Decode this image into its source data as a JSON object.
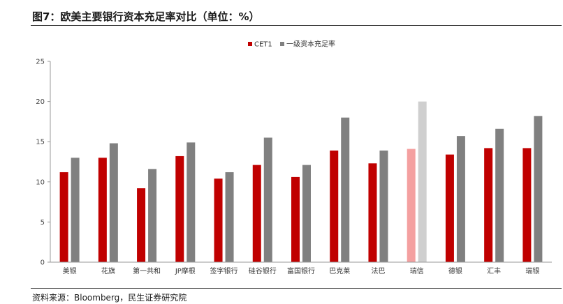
{
  "header": {
    "title": "图7：欧美主要银行资本充足率对比（单位：%）"
  },
  "footer": {
    "source": "资料来源：Bloomberg，民生证券研究院"
  },
  "colors": {
    "cet1": "#c00000",
    "total": "#808080",
    "cet1_highlight": "#f4a0a0",
    "total_highlight": "#cfcfcf",
    "axis": "#999999"
  },
  "chart_data": {
    "type": "bar",
    "categories": [
      "美银",
      "花旗",
      "第一共和",
      "JP摩根",
      "签字银行",
      "硅谷银行",
      "富国银行",
      "巴克莱",
      "法巴",
      "瑞信",
      "德银",
      "汇丰",
      "瑞银"
    ],
    "series": [
      {
        "name": "CET1",
        "values": [
          11.2,
          13.0,
          9.2,
          13.2,
          10.4,
          12.1,
          10.6,
          13.9,
          12.3,
          14.1,
          13.4,
          14.2,
          14.2
        ]
      },
      {
        "name": "一级资本充足率",
        "values": [
          13.0,
          14.8,
          11.6,
          14.9,
          11.2,
          15.5,
          12.1,
          18.0,
          13.9,
          20.0,
          15.7,
          16.6,
          18.2
        ]
      }
    ],
    "highlight_index": 9,
    "ylim": [
      0,
      25
    ],
    "yticks": [
      0,
      5,
      10,
      15,
      20,
      25
    ],
    "grid": false,
    "legend_position": "top-center",
    "title": "",
    "xlabel": "",
    "ylabel": ""
  }
}
